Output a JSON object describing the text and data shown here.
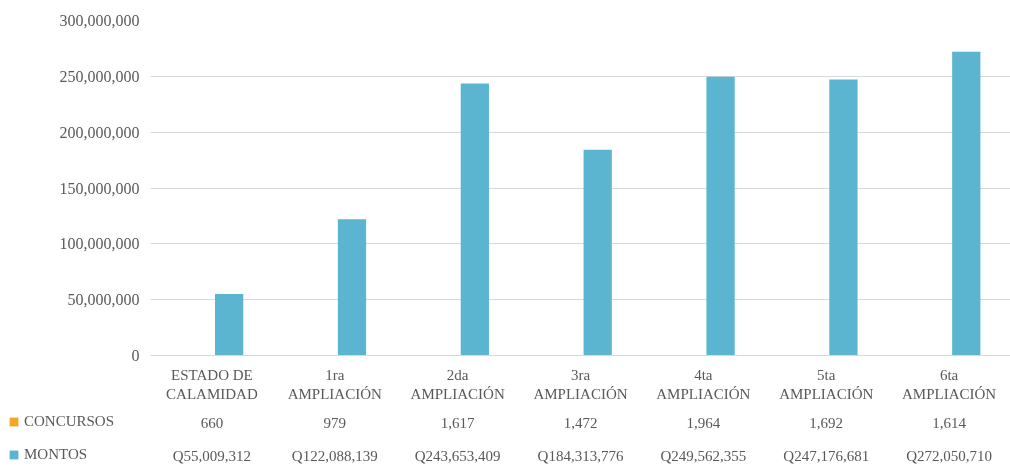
{
  "chart_data": {
    "type": "bar",
    "categories": [
      "ESTADO DE CALAMIDAD",
      "1ra AMPLIACIÓN",
      "2da AMPLIACIÓN",
      "3ra AMPLIACIÓN",
      "4ta AMPLIACIÓN",
      "5ta AMPLIACIÓN",
      "6ta AMPLIACIÓN"
    ],
    "series": [
      {
        "name": "CONCURSOS",
        "color": "#f5a623",
        "values": [
          660,
          979,
          1617,
          1472,
          1964,
          1692,
          1614
        ],
        "value_labels": [
          "660",
          "979",
          "1,617",
          "1,472",
          "1,964",
          "1,692",
          "1,614"
        ]
      },
      {
        "name": "MONTOS",
        "color": "#5bb5d0",
        "values": [
          55009312,
          122088139,
          243653409,
          184313776,
          249562355,
          247176681,
          272050710
        ],
        "value_labels": [
          "Q55,009,312",
          "Q122,088,139",
          "Q243,653,409",
          "Q184,313,776",
          "Q249,562,355",
          "Q247,176,681",
          "Q272,050,710"
        ]
      }
    ],
    "ylim": [
      0,
      300000000
    ],
    "yticks": [
      0,
      {
        "value": 50000000,
        "label": "50,000,000"
      },
      {
        "value": 100000000,
        "label": "100,000,000"
      },
      {
        "value": 150000000,
        "label": "150,000,000"
      },
      {
        "value": 200000000,
        "label": "200,000,000"
      },
      {
        "value": 250000000,
        "label": "250,000,000"
      },
      {
        "value": 300000000,
        "label": "300,000,000"
      }
    ],
    "grid": "y",
    "legend": "bottom"
  }
}
